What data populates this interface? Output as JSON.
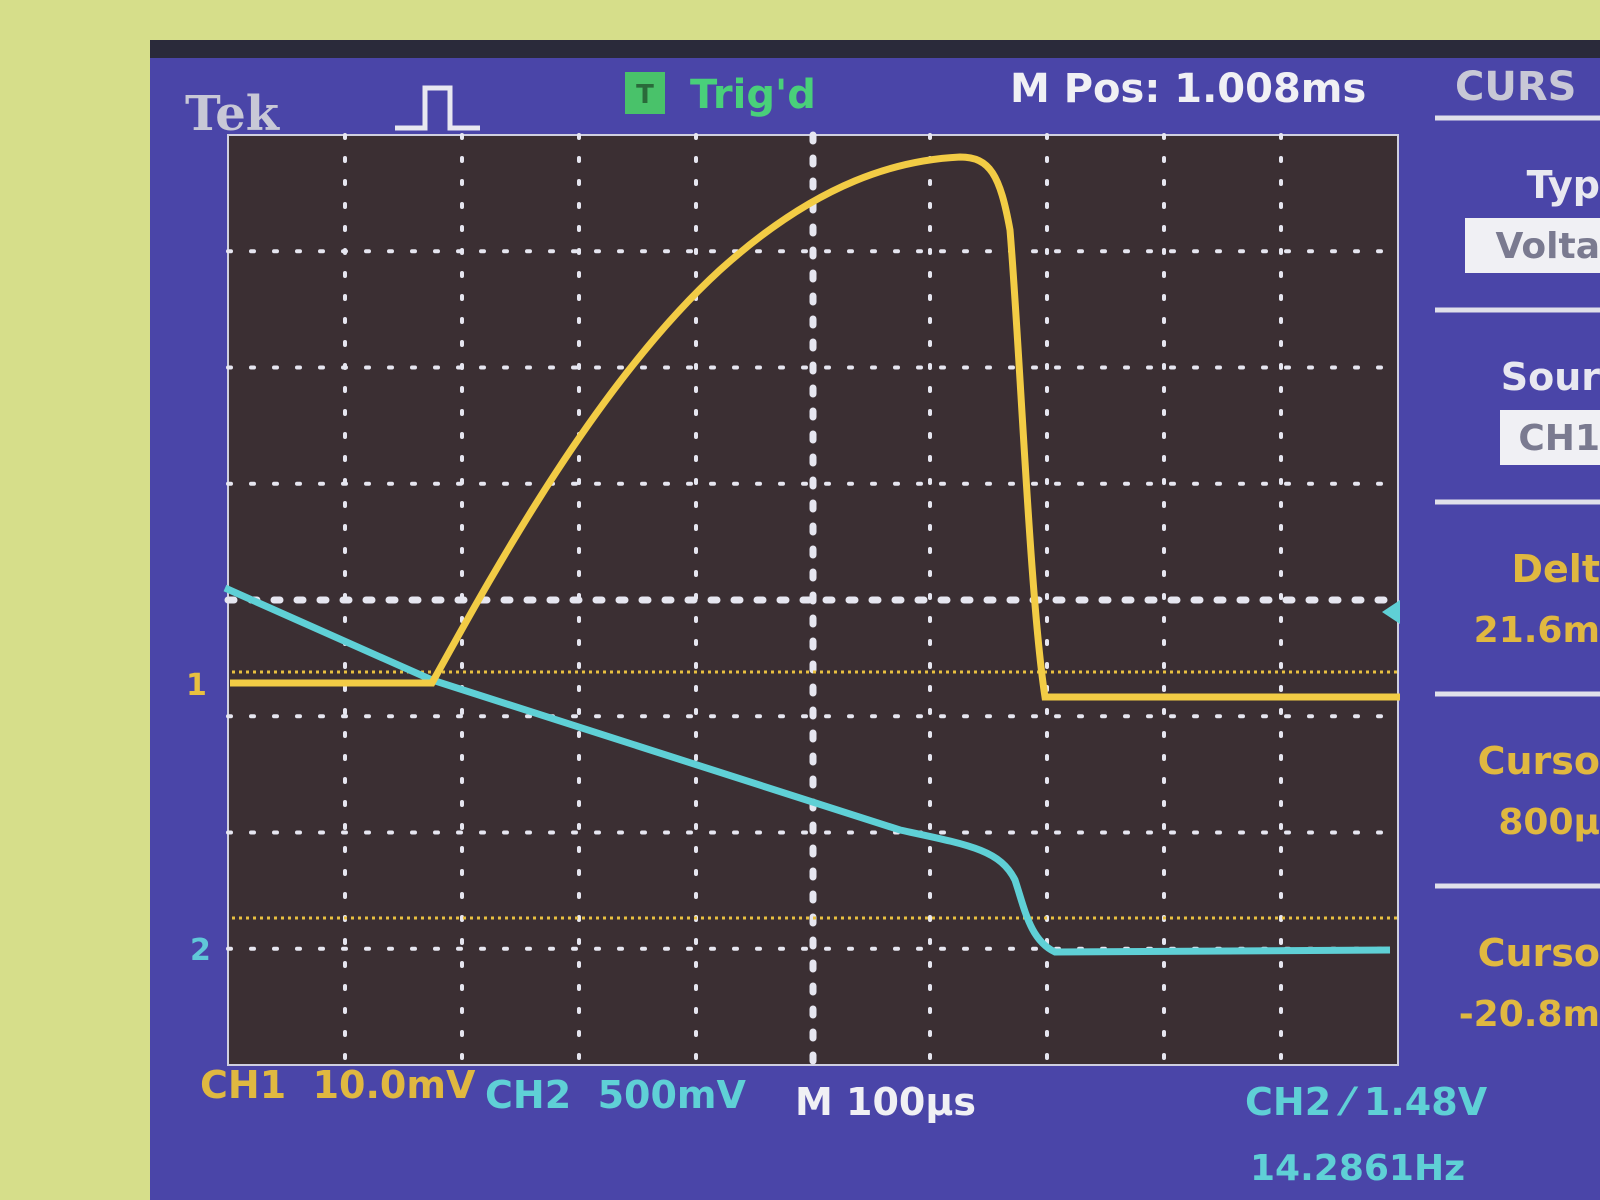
{
  "header": {
    "brand": "Tek",
    "trigger_badge": "T",
    "status": "Trig'd",
    "position": "M Pos: 1.008ms"
  },
  "markers": {
    "ch1": "1",
    "ch2": "2"
  },
  "menu": {
    "title": "CURS",
    "items": [
      {
        "label": "Typ",
        "value": "Volta"
      },
      {
        "label": "Sour",
        "value": "CH1"
      },
      {
        "label": "Delt",
        "value": "21.6m"
      },
      {
        "label": "Curso",
        "value": "800µ"
      },
      {
        "label": "Curso",
        "value": "-20.8m"
      }
    ]
  },
  "footer": {
    "ch1": "CH1  10.0mV",
    "ch2": "CH2  500mV",
    "timebase": "M 100µs",
    "trigger": "CH2 ⁄ 1.48V",
    "frequency": "14.2861Hz"
  }
}
